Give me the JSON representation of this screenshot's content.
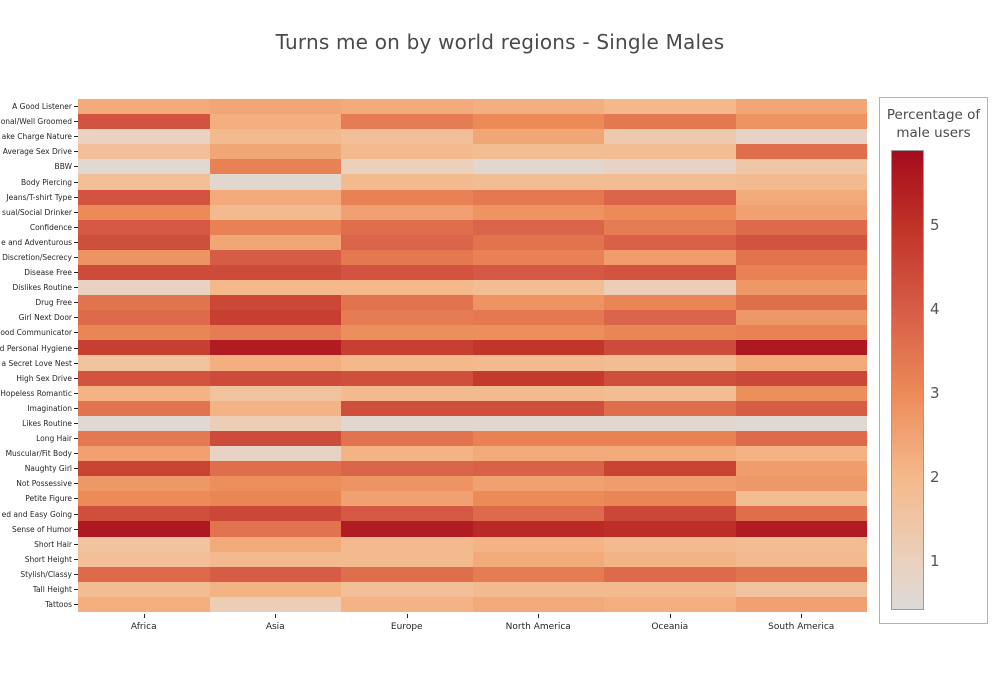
{
  "title": "Turns me on by world regions - Single Males",
  "chart_data": {
    "type": "heatmap",
    "title": "Turns me on by world regions - Single Males",
    "x_categories": [
      "Africa",
      "Asia",
      "Europe",
      "North America",
      "Oceania",
      "South America"
    ],
    "y_categories": [
      "A Good Listener",
      "onal/Well Groomed",
      "ake Charge Nature",
      "Average Sex Drive",
      "BBW",
      "Body Piercing",
      "Jeans/T-shirt Type",
      "sual/Social Drinker",
      "Confidence",
      "e and Adventurous",
      "Discretion/Secrecy",
      "Disease Free",
      "Dislikes Routine",
      "Drug Free",
      "Girl Next Door",
      "ood Communicator",
      "d Personal Hygiene",
      "a Secret Love Nest",
      "High Sex Drive",
      "Hopeless Romantic",
      "Imagination",
      "Likes Routine",
      "Long Hair",
      "Muscular/Fit Body",
      "Naughty Girl",
      "Not Possessive",
      "Petite Figure",
      "ed and Easy Going",
      "Sense of Humor",
      "Short Hair",
      "Short Height",
      "Stylish/Classy",
      "Tall Height",
      "Tattoos"
    ],
    "values": [
      [
        2.3,
        2.4,
        2.3,
        2.2,
        2.0,
        2.4
      ],
      [
        4.2,
        2.2,
        3.3,
        3.0,
        3.4,
        2.8
      ],
      [
        0.9,
        1.9,
        1.7,
        2.4,
        1.3,
        0.8
      ],
      [
        1.7,
        2.4,
        1.9,
        1.8,
        1.8,
        3.6
      ],
      [
        0.5,
        3.2,
        1.0,
        0.6,
        0.8,
        1.4
      ],
      [
        1.7,
        0.6,
        1.9,
        1.8,
        1.8,
        1.9
      ],
      [
        4.2,
        2.3,
        3.2,
        3.4,
        3.8,
        2.3
      ],
      [
        3.0,
        1.9,
        2.5,
        2.8,
        3.0,
        2.5
      ],
      [
        4.1,
        3.2,
        3.6,
        3.8,
        3.3,
        3.7
      ],
      [
        4.3,
        2.4,
        3.8,
        3.5,
        3.9,
        4.2
      ],
      [
        2.8,
        4.0,
        3.4,
        3.2,
        2.6,
        3.5
      ],
      [
        4.4,
        4.4,
        4.2,
        4.1,
        4.2,
        3.2
      ],
      [
        0.9,
        2.0,
        2.0,
        1.8,
        1.1,
        2.7
      ],
      [
        3.5,
        4.5,
        3.5,
        2.8,
        3.1,
        3.6
      ],
      [
        3.7,
        4.7,
        3.3,
        3.4,
        3.8,
        2.7
      ],
      [
        3.1,
        3.3,
        2.9,
        2.9,
        3.1,
        3.2
      ],
      [
        4.7,
        5.5,
        4.7,
        4.9,
        4.4,
        5.6
      ],
      [
        1.6,
        2.2,
        2.0,
        1.9,
        1.8,
        2.3
      ],
      [
        4.2,
        4.4,
        4.3,
        4.8,
        4.3,
        4.5
      ],
      [
        2.1,
        1.6,
        1.9,
        1.9,
        1.8,
        2.9
      ],
      [
        3.5,
        2.1,
        4.3,
        4.3,
        3.6,
        4.0
      ],
      [
        0.5,
        1.1,
        0.6,
        0.6,
        0.6,
        0.5
      ],
      [
        3.4,
        4.4,
        3.5,
        3.2,
        3.2,
        3.7
      ],
      [
        2.5,
        0.8,
        2.1,
        2.3,
        2.3,
        2.1
      ],
      [
        4.6,
        3.6,
        3.8,
        3.9,
        4.6,
        2.6
      ],
      [
        2.7,
        2.9,
        2.8,
        2.5,
        2.6,
        2.7
      ],
      [
        3.0,
        3.1,
        2.5,
        3.0,
        3.1,
        1.8
      ],
      [
        4.3,
        4.5,
        4.1,
        3.7,
        4.5,
        3.6
      ],
      [
        5.6,
        3.5,
        5.5,
        5.2,
        5.1,
        5.5
      ],
      [
        1.6,
        2.3,
        1.9,
        2.1,
        1.9,
        1.8
      ],
      [
        1.7,
        1.9,
        1.9,
        2.3,
        2.1,
        1.9
      ],
      [
        3.7,
        4.0,
        3.6,
        3.3,
        3.7,
        3.5
      ],
      [
        1.8,
        2.1,
        1.7,
        1.9,
        1.9,
        1.6
      ],
      [
        2.2,
        1.1,
        2.1,
        2.3,
        2.2,
        2.5
      ]
    ],
    "legend": {
      "title_line1": "Percentage of",
      "title_line2": "male users",
      "ticks": [
        1,
        2,
        3,
        4,
        5
      ],
      "vmin": 0.4,
      "vmax": 5.89,
      "position": "right"
    },
    "colormap": {
      "anchors": [
        [
          0.4,
          "#dcdad8"
        ],
        [
          1.0,
          "#ebd0bc"
        ],
        [
          2.0,
          "#f5b88a"
        ],
        [
          3.0,
          "#ec8a58"
        ],
        [
          4.0,
          "#d65c46"
        ],
        [
          5.0,
          "#c03227"
        ],
        [
          5.89,
          "#a50b1e"
        ]
      ]
    },
    "grid": "off",
    "background": "#ffffff"
  }
}
